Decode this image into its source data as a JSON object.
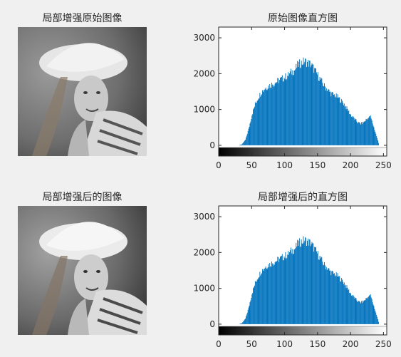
{
  "figure": {
    "top_left_title": "局部增强原始图像",
    "top_right_title": "原始图像直方图",
    "bottom_left_title": "局部增强后的图像",
    "bottom_right_title": "局部增强后的直方图"
  },
  "colors": {
    "background": "#f0f0f0",
    "bar": "#0072bd",
    "axis": "#262626"
  },
  "icons": {
    "photo": "grayscale-portrait-woman-in-hat"
  },
  "chart_data": [
    {
      "type": "bar",
      "title": "原始图像直方图",
      "xlim": [
        0,
        255
      ],
      "ylim": [
        -300,
        3300
      ],
      "xticks": [
        0,
        50,
        100,
        150,
        200,
        250
      ],
      "yticks": [
        0,
        1000,
        2000,
        3000
      ],
      "colorbar": "grayscale-0-255",
      "profile": {
        "x": [
          0,
          30,
          35,
          40,
          45,
          50,
          55,
          60,
          65,
          70,
          75,
          80,
          85,
          90,
          95,
          100,
          105,
          110,
          115,
          120,
          125,
          130,
          135,
          140,
          145,
          150,
          155,
          160,
          165,
          170,
          175,
          180,
          185,
          190,
          195,
          200,
          205,
          210,
          215,
          220,
          225,
          230,
          235,
          240,
          243,
          255
        ],
        "y": [
          0,
          0,
          30,
          150,
          450,
          850,
          1150,
          1350,
          1500,
          1600,
          1650,
          1700,
          1750,
          1800,
          1850,
          1900,
          1950,
          2050,
          2100,
          2250,
          2300,
          2350,
          2300,
          2250,
          2100,
          1950,
          1800,
          1650,
          1550,
          1450,
          1400,
          1350,
          1250,
          1150,
          1000,
          850,
          750,
          650,
          600,
          650,
          750,
          800,
          500,
          200,
          0,
          0
        ]
      }
    },
    {
      "type": "bar",
      "title": "局部增强后的直方图",
      "xlim": [
        0,
        255
      ],
      "ylim": [
        -300,
        3300
      ],
      "xticks": [
        0,
        50,
        100,
        150,
        200,
        250
      ],
      "yticks": [
        0,
        1000,
        2000,
        3000
      ],
      "colorbar": "grayscale-0-255",
      "profile": {
        "x": [
          0,
          30,
          35,
          40,
          45,
          50,
          55,
          60,
          65,
          70,
          75,
          80,
          85,
          90,
          95,
          100,
          105,
          110,
          115,
          120,
          125,
          130,
          135,
          140,
          145,
          150,
          155,
          160,
          165,
          170,
          175,
          180,
          185,
          190,
          195,
          200,
          205,
          210,
          215,
          220,
          225,
          230,
          235,
          240,
          243,
          255
        ],
        "y": [
          0,
          0,
          30,
          150,
          450,
          850,
          1150,
          1350,
          1500,
          1600,
          1650,
          1700,
          1750,
          1800,
          1850,
          1900,
          1950,
          2050,
          2100,
          2250,
          2300,
          2350,
          2300,
          2250,
          2100,
          1950,
          1800,
          1650,
          1550,
          1450,
          1400,
          1350,
          1250,
          1150,
          1000,
          850,
          750,
          650,
          600,
          650,
          750,
          800,
          500,
          200,
          0,
          0
        ]
      }
    }
  ]
}
